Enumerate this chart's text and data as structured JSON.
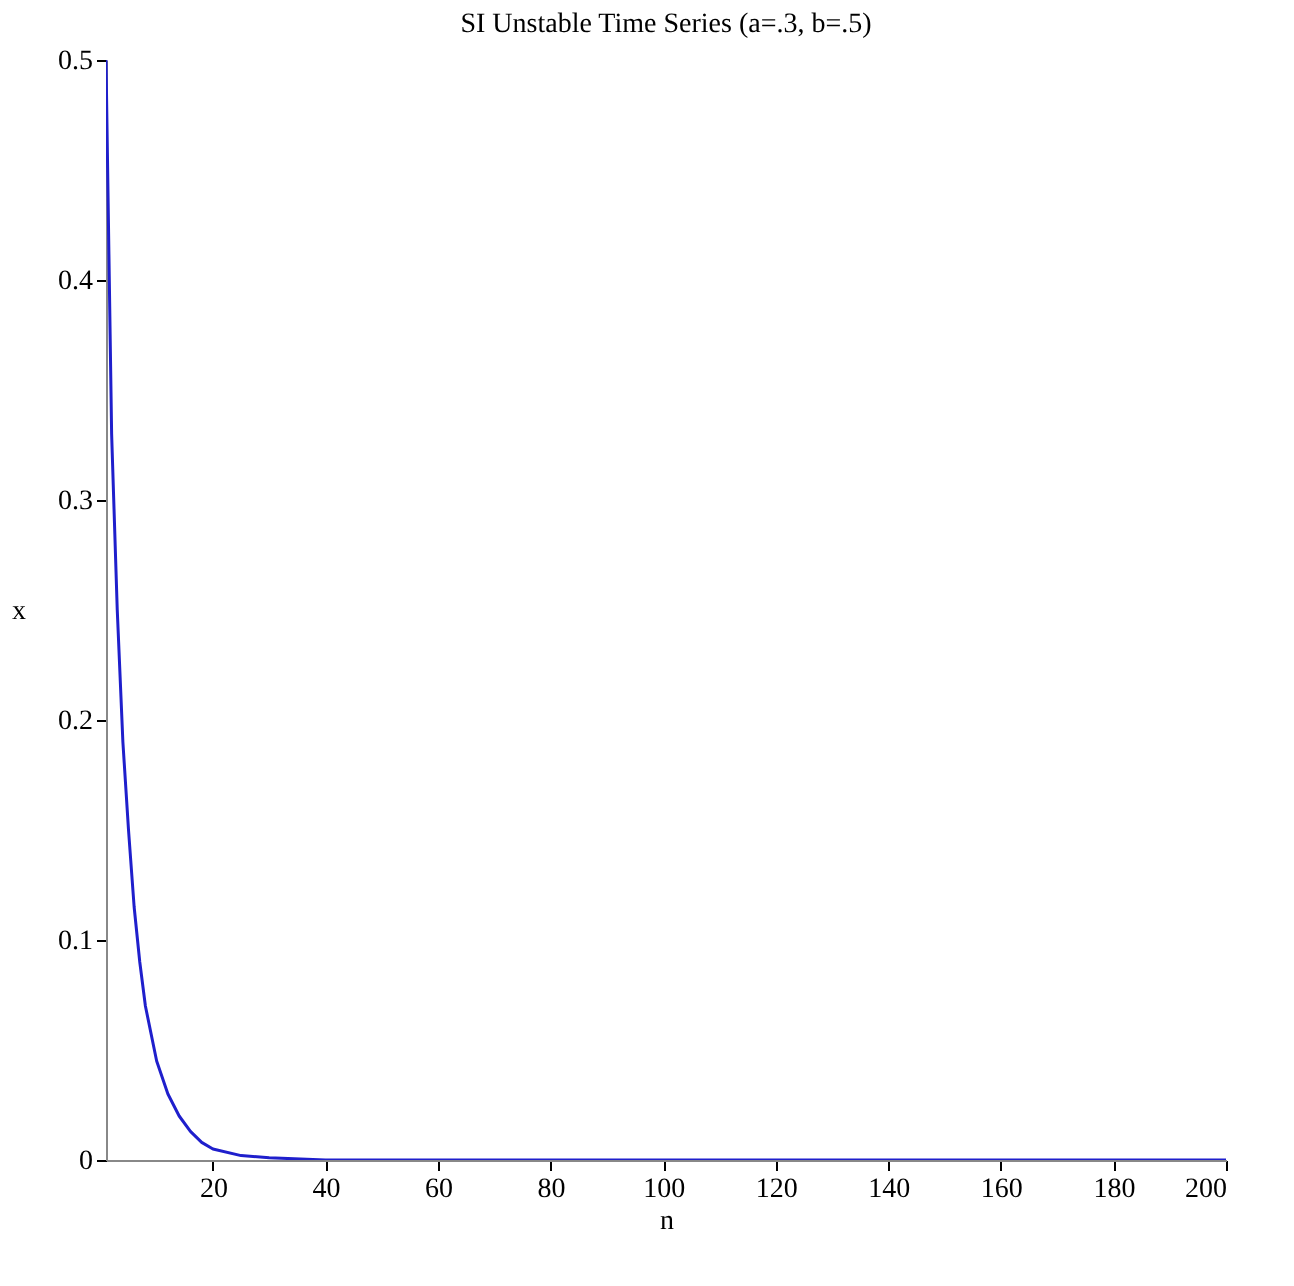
{
  "chart_data": {
    "type": "line",
    "title": "SI Unstable Time Series (a=.3, b=.5)",
    "xlabel": "n",
    "ylabel": "x",
    "x": [
      1,
      2,
      3,
      4,
      5,
      6,
      7,
      8,
      10,
      12,
      14,
      16,
      18,
      20,
      25,
      30,
      40,
      60,
      100,
      150,
      200
    ],
    "series": [
      {
        "color": "#1f1fcc",
        "values": [
          0.5,
          0.33,
          0.25,
          0.19,
          0.15,
          0.115,
          0.09,
          0.07,
          0.045,
          0.03,
          0.02,
          0.013,
          0.008,
          0.005,
          0.002,
          0.001,
          0,
          0,
          0,
          0,
          0
        ]
      }
    ],
    "xlim": [
      1,
      200
    ],
    "xticks": [
      20,
      40,
      60,
      80,
      100,
      120,
      140,
      160,
      180,
      200
    ],
    "ylim": [
      0,
      0.5
    ],
    "yticks": [
      0,
      0.1,
      0.2,
      0.3,
      0.4,
      0.5
    ],
    "grid": false,
    "marker": "none",
    "line_style": "solid"
  }
}
